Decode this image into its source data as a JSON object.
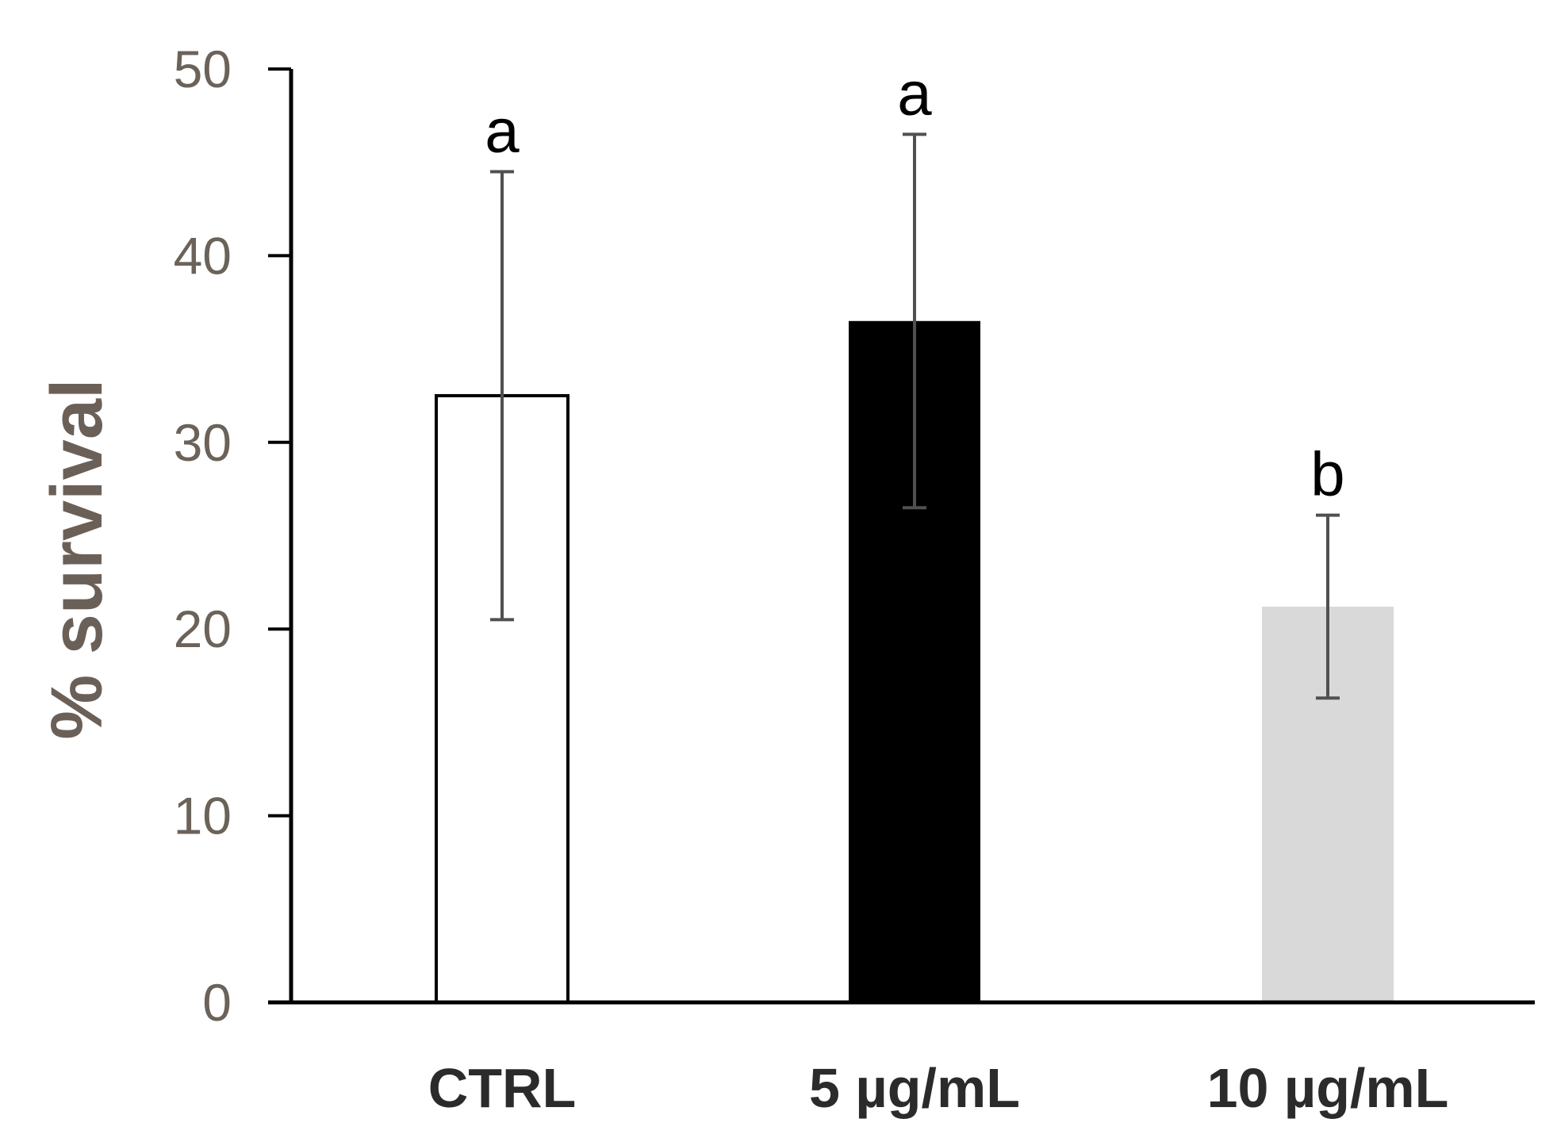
{
  "chart_data": {
    "type": "bar",
    "title": "",
    "xlabel": "",
    "ylabel": "% survival",
    "ylim": [
      0,
      50
    ],
    "yticks": [
      0,
      10,
      20,
      30,
      40,
      50
    ],
    "grid": false,
    "categories": [
      "CTRL",
      "5 µg/mL",
      "10 µg/mL"
    ],
    "values": [
      32.5,
      36.5,
      21.2
    ],
    "error": [
      12.0,
      10.0,
      4.9
    ],
    "significance_labels": [
      "a",
      "a",
      "b"
    ],
    "bar_colors": [
      "#ffffff",
      "#000000",
      "#d9d9d9"
    ],
    "bar_outline": [
      true,
      false,
      false
    ]
  }
}
